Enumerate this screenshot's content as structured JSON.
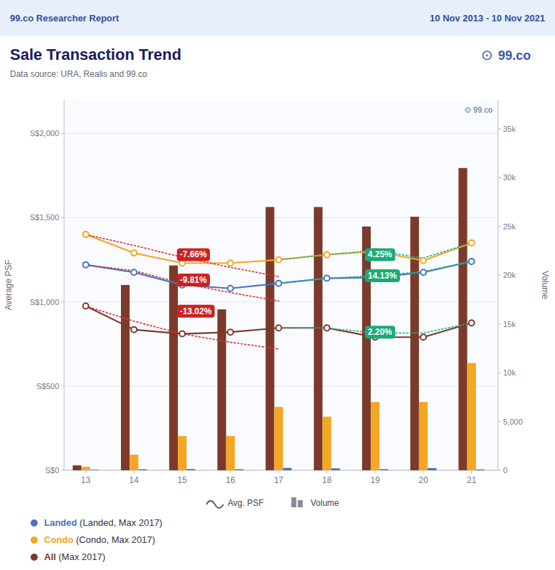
{
  "chart_data": {
    "type": "line",
    "header_left": "99.co Researcher Report",
    "header_right": "10 Nov 2013 - 10 Nov 2021",
    "title": "Sale Transaction Trend",
    "subtitle": "Data source: URA, Realis and 99.co",
    "logo_icon": "⊙",
    "logo": "99.co",
    "watermark": "⊙ 99.co",
    "x": [
      13,
      14,
      15,
      16,
      17,
      18,
      19,
      20,
      21
    ],
    "xlim": [
      12.55,
      21.55
    ],
    "xticks": [
      13,
      14,
      15,
      16,
      17,
      18,
      19,
      20,
      21
    ],
    "ylim": [
      0,
      2200
    ],
    "yticks": [
      {
        "value": 0,
        "label": "S$0"
      },
      {
        "value": 500,
        "label": "S$500"
      },
      {
        "value": 1000,
        "label": "S$1,000"
      },
      {
        "value": 1500,
        "label": "S$1,500"
      },
      {
        "value": 2000,
        "label": "S$2,000"
      }
    ],
    "y2lim": [
      0,
      38000
    ],
    "y2ticks": [
      0,
      {
        "value": 5000,
        "label": "5,000"
      },
      {
        "value": 10000,
        "label": "10k"
      },
      {
        "value": 15000,
        "label": "15k"
      },
      {
        "value": 20000,
        "label": "20k"
      },
      {
        "value": 25000,
        "label": "25k"
      },
      {
        "value": 30000,
        "label": "30k"
      },
      {
        "value": 35000,
        "label": "35k"
      }
    ],
    "ylabel": "Average PSF",
    "y2label": "Volume",
    "grid": true,
    "legend": "bottom",
    "series": [
      {
        "name": "Condo",
        "type": "line",
        "color": "#f5a623",
        "marker": "circle",
        "values": [
          1400,
          1290,
          1230,
          1230,
          1250,
          1280,
          1300,
          1245,
          1350
        ]
      },
      {
        "name": "Landed",
        "type": "line",
        "color": "#4472c4",
        "marker": "circle",
        "values": [
          1220,
          1175,
          1100,
          1080,
          1110,
          1140,
          1145,
          1175,
          1240
        ]
      },
      {
        "name": "All",
        "type": "line",
        "color": "#7B3A2A",
        "marker": "circle",
        "values": [
          975,
          835,
          810,
          820,
          845,
          845,
          790,
          790,
          875
        ]
      },
      {
        "name": "All",
        "type": "bar",
        "axis": "y2",
        "color": "#7B3A2A",
        "values": [
          500,
          19000,
          21000,
          16500,
          27000,
          27000,
          25000,
          26000,
          31000
        ]
      },
      {
        "name": "Condo",
        "type": "bar",
        "axis": "y2",
        "color": "#f5a623",
        "values": [
          350,
          1600,
          3500,
          3500,
          6500,
          5500,
          7000,
          7000,
          11000
        ]
      },
      {
        "name": "Landed",
        "type": "bar",
        "axis": "y2",
        "color": "#4472c4",
        "values": [
          50,
          100,
          120,
          100,
          240,
          200,
          110,
          220,
          80
        ]
      },
      {
        "type": "line",
        "color": "#dd3333",
        "line_style": "dotted",
        "x": [
          13,
          14,
          15,
          16,
          17
        ],
        "values": [
          1400,
          1335,
          1265,
          1205,
          1150
        ]
      },
      {
        "type": "line",
        "color": "#dd3333",
        "line_style": "dotted",
        "x": [
          13,
          14,
          15,
          16,
          17
        ],
        "values": [
          1220,
          1185,
          1110,
          1055,
          1005
        ]
      },
      {
        "type": "line",
        "color": "#dd3333",
        "line_style": "dotted",
        "x": [
          13,
          14,
          15,
          16,
          17
        ],
        "values": [
          975,
          885,
          810,
          760,
          720
        ]
      },
      {
        "type": "line",
        "color": "#22bb88",
        "line_style": "dotted",
        "x": [
          17,
          18,
          19,
          20,
          21
        ],
        "values": [
          1250,
          1280,
          1305,
          1260,
          1350
        ]
      },
      {
        "type": "line",
        "color": "#22bb88",
        "line_style": "dotted",
        "x": [
          17,
          18,
          19,
          20,
          21
        ],
        "values": [
          1110,
          1140,
          1155,
          1180,
          1240
        ]
      },
      {
        "type": "line",
        "color": "#22bb88",
        "line_style": "dotted",
        "x": [
          17,
          18,
          19,
          20,
          21
        ],
        "values": [
          845,
          845,
          815,
          815,
          875
        ]
      }
    ],
    "annotations": [
      {
        "text": "-7.66%",
        "x": 14.95,
        "y": 1280,
        "color": "#cc2222"
      },
      {
        "text": "-9.81%",
        "x": 14.95,
        "y": 1130,
        "color": "#cc2222"
      },
      {
        "text": "-13.02%",
        "x": 14.95,
        "y": 945,
        "color": "#cc2222"
      },
      {
        "text": "4.25%",
        "x": 18.85,
        "y": 1280,
        "color": "#1aaa77"
      },
      {
        "text": "14.13%",
        "x": 18.85,
        "y": 1155,
        "color": "#1aaa77"
      },
      {
        "text": "2.20%",
        "x": 18.85,
        "y": 820,
        "color": "#1aaa77"
      }
    ],
    "legend_types": [
      {
        "label": "Avg. PSF",
        "type": "line"
      },
      {
        "label": "Volume",
        "type": "bar"
      }
    ],
    "legend_entries": [
      {
        "name": "Landed",
        "note": " (Landed, Max 2017)"
      },
      {
        "name": "Condo",
        "note": " (Condo, Max 2017)"
      },
      {
        "name": "All",
        "note": " (Max 2017)"
      }
    ]
  }
}
